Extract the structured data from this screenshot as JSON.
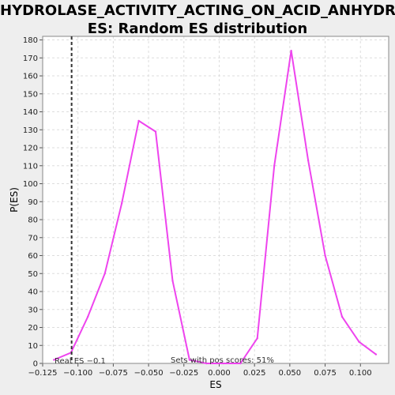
{
  "chart_data": {
    "type": "line",
    "title_lines": [
      "HYDROLASE_ACTIVITY_ACTING_ON_ACID_ANHYDRID",
      "ES: Random ES distribution"
    ],
    "xlabel": "ES",
    "ylabel": "P(ES)",
    "xlim": [
      -0.125,
      0.12
    ],
    "ylim": [
      0,
      182
    ],
    "xticks": [
      -0.125,
      -0.1,
      -0.075,
      -0.05,
      -0.025,
      0.0,
      0.025,
      0.05,
      0.075,
      0.1
    ],
    "xtick_labels": [
      "−0.125",
      "−0.100",
      "−0.075",
      "−0.050",
      "−0.025",
      "0.000",
      "0.025",
      "0.050",
      "0.075",
      "0.100"
    ],
    "yticks": [
      0,
      10,
      20,
      30,
      40,
      50,
      60,
      70,
      80,
      90,
      100,
      110,
      120,
      130,
      140,
      150,
      160,
      170,
      180
    ],
    "grid": true,
    "series": [
      {
        "color": "#ee44ee",
        "x": [
          -0.117,
          -0.105,
          -0.093,
          -0.081,
          -0.069,
          -0.057,
          -0.045,
          -0.033,
          -0.021,
          -0.009,
          0.003,
          0.015,
          0.027,
          0.039,
          0.051,
          0.063,
          0.075,
          0.087,
          0.099,
          0.111
        ],
        "y": [
          2,
          6,
          26,
          50,
          89,
          135,
          129,
          46,
          2,
          0,
          0,
          0,
          14,
          110,
          174,
          113,
          60,
          26,
          12,
          5
        ]
      }
    ],
    "real_es": {
      "x": -0.1045,
      "label": "Real ES −0.1"
    },
    "annotation": "Sets with pos scores: 51%"
  }
}
